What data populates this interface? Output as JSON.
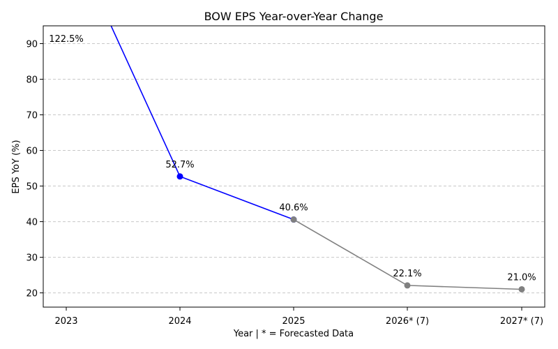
{
  "chart_data": {
    "type": "line",
    "title": "BOW EPS Year-over-Year Change",
    "xlabel": "Year | * = Forecasted Data",
    "ylabel": "EPS YoY (%)",
    "categories": [
      "2023",
      "2024",
      "2025",
      "2026* (7)",
      "2027* (7)"
    ],
    "ylim": [
      16,
      95
    ],
    "yticks": [
      20,
      30,
      40,
      50,
      60,
      70,
      80,
      90
    ],
    "grid": "horizontal-dashed",
    "series": [
      {
        "segment": "actual",
        "color": "#0000ff",
        "points": [
          {
            "x": "2023",
            "y": 122.5,
            "label": "122.5%"
          },
          {
            "x": "2024",
            "y": 52.7,
            "label": "52.7%"
          },
          {
            "x": "2025",
            "y": 40.6,
            "label": ""
          }
        ]
      },
      {
        "segment": "forecast",
        "color": "#808080",
        "points": [
          {
            "x": "2025",
            "y": 40.6,
            "label": "40.6%"
          },
          {
            "x": "2026* (7)",
            "y": 22.1,
            "label": "22.1%"
          },
          {
            "x": "2027* (7)",
            "y": 21.0,
            "label": "21.0%"
          }
        ]
      }
    ]
  }
}
